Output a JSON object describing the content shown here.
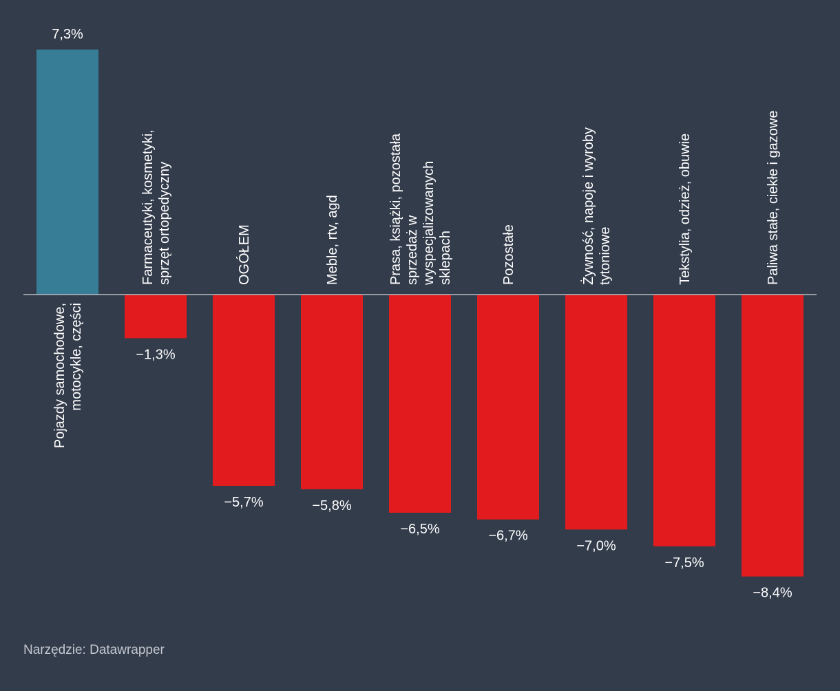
{
  "chart_data": {
    "type": "bar",
    "title": "",
    "xlabel": "",
    "ylabel": "",
    "ylim": [
      -8.4,
      7.3
    ],
    "grid": false,
    "categories": [
      [
        "Pojazdy samochodowe,",
        "motocykle, części"
      ],
      [
        "Farmaceutyki, kosmetyki,",
        "sprzęt ortopedyczny"
      ],
      [
        "OGÓŁEM"
      ],
      [
        "Meble, rtv, agd"
      ],
      [
        "Prasa, książki, pozostała",
        "sprzedaż w",
        "wyspecjalizowanych",
        "sklepach"
      ],
      [
        "Pozostałe"
      ],
      [
        "Żywność, napoje i wyroby",
        "tytoniowe"
      ],
      [
        "Tekstylia, odzież, obuwie"
      ],
      [
        "Paliwa stałe, ciekłe i gazowe"
      ]
    ],
    "values": [
      7.3,
      -1.3,
      -5.7,
      -5.8,
      -6.5,
      -6.7,
      -7.0,
      -7.5,
      -8.4
    ],
    "value_labels": [
      "7,3%",
      "−1,3%",
      "−5,7%",
      "−5,8%",
      "−6,5%",
      "−6,7%",
      "−7,0%",
      "−7,5%",
      "−8,4%"
    ],
    "colors": {
      "positive": "#377d96",
      "negative": "#e11b1e",
      "baseline": "#b7bcc4",
      "label": "#ffffff",
      "background": "#333c4b"
    }
  },
  "footer": {
    "source": "Narzędzie: Datawrapper"
  }
}
